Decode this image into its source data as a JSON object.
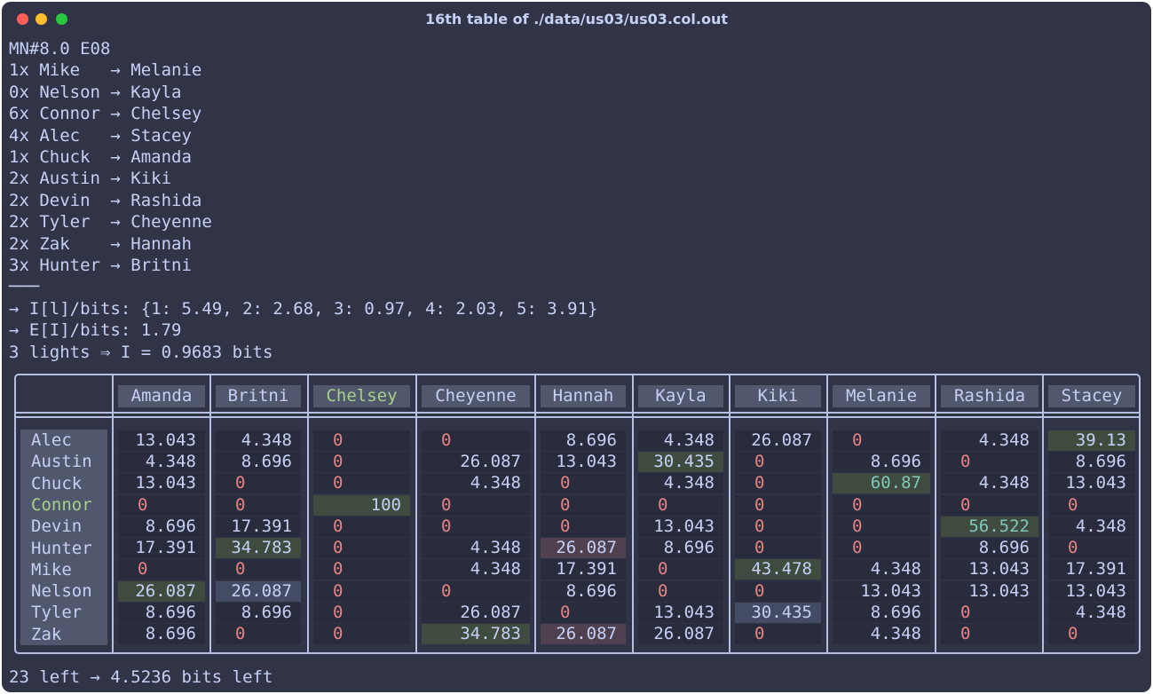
{
  "window": {
    "title": "16th table of ./data/us03/us03.col.out",
    "colors": {
      "background": "#303446",
      "text": "#c6d0f5",
      "zero": "#e78284",
      "highlight": "#a6d189",
      "teal": "#81c8be"
    }
  },
  "header_lines": [
    "MN#8.0 E08",
    "1x Mike   → Melanie",
    "0x Nelson → Kayla",
    "6x Connor → Chelsey",
    "4x Alec   → Stacey",
    "1x Chuck  → Amanda",
    "2x Austin → Kiki",
    "2x Devin  → Rashida",
    "2x Tyler  → Cheyenne",
    "2x Zak    → Hannah",
    "3x Hunter → Britni",
    "───",
    "→ I[l]/bits: {1: 5.49, 2: 2.68, 3: 0.97, 4: 2.03, 5: 3.91}",
    "→ E[I]/bits: 1.79",
    "3 lights ⇒ I = 0.9683 bits"
  ],
  "table": {
    "columns": [
      "Amanda",
      "Britni",
      "Chelsey",
      "Cheyenne",
      "Hannah",
      "Kayla",
      "Kiki",
      "Melanie",
      "Rashida",
      "Stacey"
    ],
    "highlight_column": 2,
    "rows": [
      {
        "name": "Alec",
        "values": [
          "13.043",
          "4.348",
          "0",
          "0",
          "8.696",
          "4.348",
          "26.087",
          "0",
          "4.348",
          "39.13"
        ]
      },
      {
        "name": "Austin",
        "values": [
          "4.348",
          "8.696",
          "0",
          "26.087",
          "13.043",
          "30.435",
          "0",
          "8.696",
          "0",
          "8.696"
        ]
      },
      {
        "name": "Chuck",
        "values": [
          "13.043",
          "0",
          "0",
          "4.348",
          "0",
          "4.348",
          "0",
          "60.87",
          "4.348",
          "13.043"
        ]
      },
      {
        "name": "Connor",
        "values": [
          "0",
          "0",
          "100",
          "0",
          "0",
          "0",
          "0",
          "0",
          "0",
          "0"
        ]
      },
      {
        "name": "Devin",
        "values": [
          "8.696",
          "17.391",
          "0",
          "0",
          "0",
          "13.043",
          "0",
          "0",
          "56.522",
          "4.348"
        ]
      },
      {
        "name": "Hunter",
        "values": [
          "17.391",
          "34.783",
          "0",
          "4.348",
          "26.087",
          "8.696",
          "0",
          "0",
          "8.696",
          "0"
        ]
      },
      {
        "name": "Mike",
        "values": [
          "0",
          "0",
          "0",
          "4.348",
          "17.391",
          "0",
          "43.478",
          "4.348",
          "13.043",
          "17.391"
        ]
      },
      {
        "name": "Nelson",
        "values": [
          "26.087",
          "26.087",
          "0",
          "0",
          "8.696",
          "0",
          "0",
          "13.043",
          "13.043",
          "13.043"
        ]
      },
      {
        "name": "Tyler",
        "values": [
          "8.696",
          "8.696",
          "0",
          "26.087",
          "0",
          "13.043",
          "30.435",
          "8.696",
          "0",
          "4.348"
        ]
      },
      {
        "name": "Zak",
        "values": [
          "8.696",
          "0",
          "0",
          "34.783",
          "26.087",
          "26.087",
          "0",
          "4.348",
          "0",
          "0"
        ]
      }
    ],
    "highlight_row": 3,
    "cell_highlights": [
      {
        "row": 0,
        "col": 9,
        "color": "green"
      },
      {
        "row": 1,
        "col": 5,
        "color": "green"
      },
      {
        "row": 2,
        "col": 7,
        "color": "green-teal"
      },
      {
        "row": 3,
        "col": 2,
        "color": "green"
      },
      {
        "row": 4,
        "col": 8,
        "color": "green-teal"
      },
      {
        "row": 5,
        "col": 1,
        "color": "green"
      },
      {
        "row": 5,
        "col": 4,
        "color": "pink"
      },
      {
        "row": 6,
        "col": 6,
        "color": "green"
      },
      {
        "row": 7,
        "col": 0,
        "color": "green"
      },
      {
        "row": 7,
        "col": 1,
        "color": "blue"
      },
      {
        "row": 8,
        "col": 6,
        "color": "blue"
      },
      {
        "row": 9,
        "col": 3,
        "color": "green"
      },
      {
        "row": 9,
        "col": 4,
        "color": "pink"
      }
    ]
  },
  "footer": "23 left → 4.5236 bits left"
}
